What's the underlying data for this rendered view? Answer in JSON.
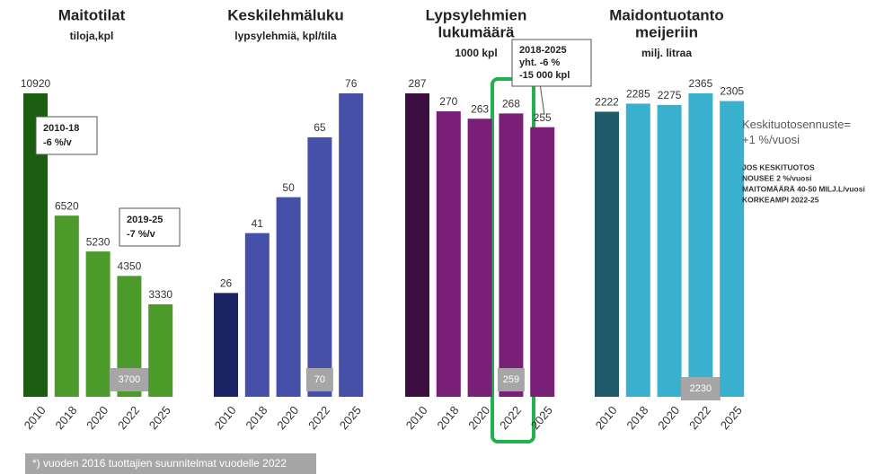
{
  "chart_data": [
    {
      "type": "bar",
      "title": [
        "Maitotilat"
      ],
      "subtitle": "tiloja,kpl",
      "categories": [
        "2010",
        "2018",
        "2020",
        "2022",
        "2025"
      ],
      "values": [
        10920,
        6520,
        5230,
        4350,
        3330
      ],
      "colors": [
        "#1b5e12",
        "#4c9a2a",
        "#4c9a2a",
        "#4c9a2a",
        "#4c9a2a"
      ],
      "plan_values": [
        null,
        null,
        null,
        3700,
        null
      ],
      "annotations": [
        [
          "2010-18",
          "-6 %/v"
        ],
        [
          "2019-25",
          "-7 %/v"
        ]
      ]
    },
    {
      "type": "bar",
      "title": [
        "Keskilehmäluku"
      ],
      "subtitle": "lypsylehmiä, kpl/tila",
      "categories": [
        "2010",
        "2018",
        "2020",
        "2022",
        "2025"
      ],
      "values": [
        26,
        41,
        50,
        65,
        76
      ],
      "colors": [
        "#1b2566",
        "#4650a8",
        "#4650a8",
        "#4650a8",
        "#4650a8"
      ],
      "plan_values": [
        null,
        null,
        null,
        70,
        null
      ]
    },
    {
      "type": "bar",
      "title": [
        "Lypsylehmien",
        "lukumäärä"
      ],
      "subtitle": "1000 kpl",
      "categories": [
        "2010",
        "2018",
        "2020",
        "2022",
        "2025"
      ],
      "values": [
        287,
        270,
        263,
        268,
        255
      ],
      "colors": [
        "#3a0f3f",
        "#7a1f78",
        "#7a1f78",
        "#7a1f78",
        "#7a1f78"
      ],
      "plan_values": [
        null,
        null,
        null,
        259,
        null
      ],
      "annotations": [
        [
          "2018-2025",
          "yht. -6 %",
          "-15 000 kpl"
        ]
      ]
    },
    {
      "type": "bar",
      "title": [
        "Maidontuotanto",
        "meijeriin"
      ],
      "subtitle": "milj. litraa",
      "categories": [
        "2010",
        "2018",
        "2020",
        "2022",
        "2025"
      ],
      "values": [
        2222,
        2285,
        2275,
        2365,
        2305
      ],
      "colors": [
        "#1e5a6a",
        "#3ab0cf",
        "#3ab0cf",
        "#3ab0cf",
        "#3ab0cf"
      ],
      "plan_values": [
        null,
        null,
        null,
        2230,
        null
      ],
      "annotations": [
        [
          "Keskituotosennuste=",
          "+1 %/vuosi"
        ],
        [
          "JOS KESKITUOTOS",
          "NOUSEE 2 %/vuosi",
          "MAITOMÄÄRÄ 40-50 MILJ.L/vuosi",
          "KORKEAMPI 2022-25"
        ]
      ]
    }
  ],
  "footnote": "*) vuoden 2016 tuottajien suunnitelmat vuodelle 2022"
}
